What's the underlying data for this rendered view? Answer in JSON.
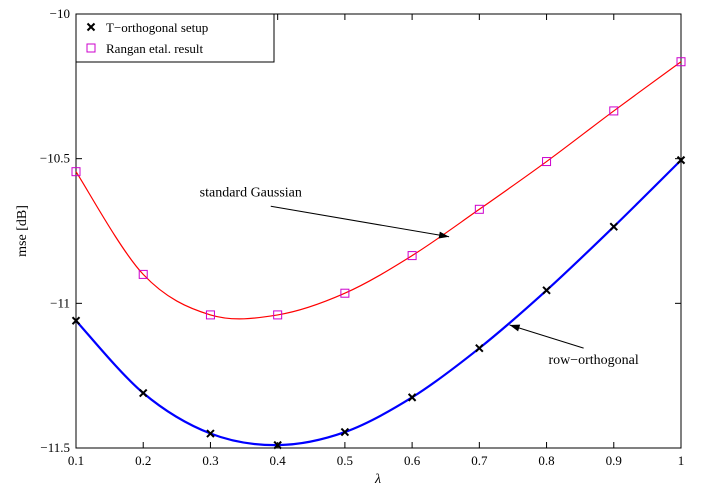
{
  "chart_data": {
    "type": "line",
    "xlabel": "λ",
    "ylabel": "mse  [dB]",
    "xlim": [
      0.1,
      1
    ],
    "ylim": [
      -11.5,
      -10
    ],
    "xticks": [
      0.1,
      0.2,
      0.3,
      0.4,
      0.5,
      0.6,
      0.7,
      0.8,
      0.9,
      1
    ],
    "xtick_labels": [
      "0.1",
      "0.2",
      "0.3",
      "0.4",
      "0.5",
      "0.6",
      "0.7",
      "0.8",
      "0.9",
      "1"
    ],
    "yticks": [
      -11.5,
      -11,
      -10.5,
      -10
    ],
    "ytick_labels": [
      "−11.5",
      "−11",
      "−10.5",
      "−10"
    ],
    "grid": false,
    "legend_position": "top-left",
    "series": [
      {
        "name": "T−orthogonal setup",
        "marker": "x",
        "color": "#000000",
        "line_color": "#0000ff",
        "x": [
          0.1,
          0.2,
          0.3,
          0.4,
          0.5,
          0.6,
          0.7,
          0.8,
          0.9,
          1.0
        ],
        "y": [
          -11.06,
          -11.31,
          -11.45,
          -11.49,
          -11.445,
          -11.325,
          -11.155,
          -10.955,
          -10.735,
          -10.505
        ]
      },
      {
        "name": "Rangan etal. result",
        "marker": "square",
        "color": "#cc00cc",
        "line_color": "#ff0000",
        "x": [
          0.1,
          0.2,
          0.3,
          0.4,
          0.5,
          0.6,
          0.7,
          0.8,
          0.9,
          1.0
        ],
        "y": [
          -10.545,
          -10.9,
          -11.04,
          -11.04,
          -10.965,
          -10.835,
          -10.675,
          -10.51,
          -10.335,
          -10.165
        ]
      }
    ],
    "annotations": [
      {
        "text": "standard Gaussian",
        "x": 0.36,
        "y": -10.63,
        "arrow_to": [
          0.655,
          -10.77
        ]
      },
      {
        "text": "row−orthogonal",
        "x": 0.87,
        "y": -11.21,
        "arrow_to": [
          0.745,
          -11.075
        ]
      }
    ]
  }
}
